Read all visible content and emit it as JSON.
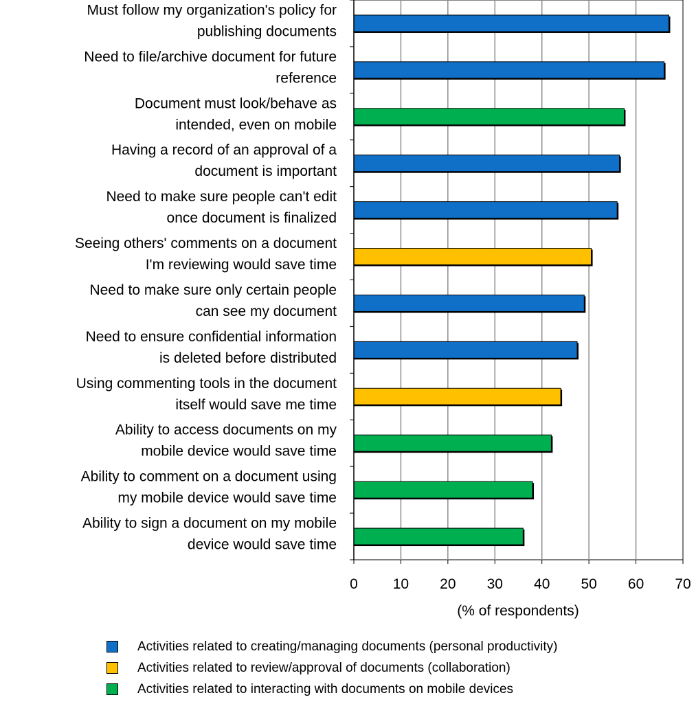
{
  "colors": {
    "creating": "#1070C8",
    "review": "#FFC000",
    "mobile": "#00B050"
  },
  "chart_data": {
    "type": "bar",
    "orientation": "horizontal",
    "categories": [
      [
        "Must follow my organization's policy for",
        "publishing documents"
      ],
      [
        "Need to file/archive document for future",
        "reference"
      ],
      [
        "Document must look/behave as",
        "intended, even on mobile"
      ],
      [
        "Having a record of an approval of a",
        "document is important"
      ],
      [
        "Need to make sure people can't edit",
        "once document is finalized"
      ],
      [
        "Seeing others' comments on a document",
        "I'm reviewing would save time"
      ],
      [
        "Need to make sure only certain people",
        "can see my document"
      ],
      [
        "Need to ensure confidential information",
        "is deleted before distributed"
      ],
      [
        "Using commenting tools in the document",
        "itself would save me time"
      ],
      [
        "Ability to access documents on my",
        "mobile device would save time"
      ],
      [
        "Ability to comment on a document using",
        "my mobile device would save time"
      ],
      [
        "Ability to sign a document on my mobile",
        "device would save time"
      ]
    ],
    "values": [
      67,
      66,
      57.5,
      56.5,
      56,
      50.5,
      49,
      47.5,
      44,
      42,
      38,
      36
    ],
    "groups": [
      "creating",
      "creating",
      "mobile",
      "creating",
      "creating",
      "review",
      "creating",
      "creating",
      "review",
      "mobile",
      "mobile",
      "mobile"
    ],
    "xlabel": "(% of respondents)",
    "xlim": [
      0,
      70
    ],
    "xticks": [
      "0",
      "10",
      "20",
      "30",
      "40",
      "50",
      "60",
      "70"
    ],
    "grid": "vertical",
    "legend_position": "bottom",
    "legend": [
      {
        "key": "creating",
        "label": "Activities related to creating/managing documents (personal productivity)"
      },
      {
        "key": "review",
        "label": "Activities related to review/approval of documents (collaboration)"
      },
      {
        "key": "mobile",
        "label": "Activities related to interacting with documents on mobile devices"
      }
    ]
  }
}
